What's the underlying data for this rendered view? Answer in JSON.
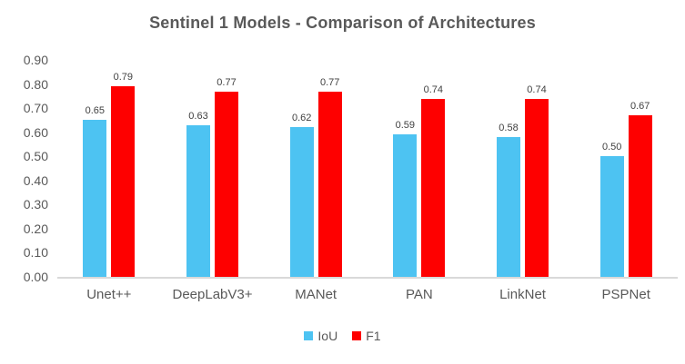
{
  "title": "Sentinel 1 Models - Comparison of Architectures",
  "chart_data": {
    "type": "bar",
    "title": "Sentinel 1 Models - Comparison of Architectures",
    "categories": [
      "Unet++",
      "DeepLabV3+",
      "MANet",
      "PAN",
      "LinkNet",
      "PSPNet"
    ],
    "series": [
      {
        "name": "IoU",
        "color": "#4dc3f2",
        "values": [
          0.65,
          0.63,
          0.62,
          0.59,
          0.58,
          0.5
        ],
        "labels": [
          "0.65",
          "0.63",
          "0.62",
          "0.59",
          "0.58",
          "0.50"
        ]
      },
      {
        "name": "F1",
        "color": "#fe0000",
        "values": [
          0.79,
          0.77,
          0.77,
          0.74,
          0.74,
          0.67
        ],
        "labels": [
          "0.79",
          "0.77",
          "0.77",
          "0.74",
          "0.74",
          "0.67"
        ]
      }
    ],
    "xlabel": "",
    "ylabel": "",
    "ylim": [
      0,
      0.9
    ],
    "yticks": [
      "0.90",
      "0.80",
      "0.70",
      "0.60",
      "0.50",
      "0.40",
      "0.30",
      "0.20",
      "0.10",
      "0.00"
    ],
    "grid": false,
    "legend_position": "bottom",
    "axis_line_color": "#d9d9d9",
    "text_color": "#595959",
    "value_label_color": "#404040"
  }
}
